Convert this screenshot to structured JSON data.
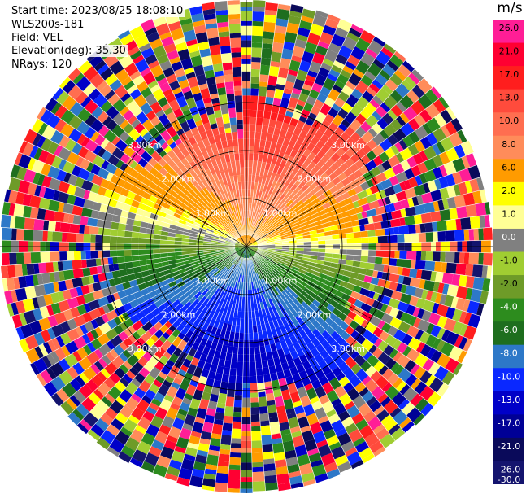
{
  "header": {
    "start_time": "Start time: 2023/08/25 18:08:10",
    "instrument": "WLS200s-181",
    "field": "Field: VEL",
    "elevation": "Elevation(deg): 35.30",
    "nrays": "NRays: 120"
  },
  "chart_data": {
    "type": "heatmap",
    "projection": "polar-ppi",
    "field": "VEL",
    "unit": "m/s",
    "nrays": 120,
    "elevation_deg": 35.3,
    "range_rings_km": [
      1.0,
      2.0,
      3.0
    ],
    "ring_labels": [
      "1.00km",
      "2.00km",
      "3.00km"
    ],
    "colorbar": {
      "ticks": [
        26.0,
        21.0,
        17.0,
        13.0,
        10.0,
        8.0,
        6.0,
        2.0,
        1.0,
        0.0,
        -1.0,
        -2.0,
        -4.0,
        -6.0,
        -8.0,
        -10.0,
        -13.0,
        -17.0,
        -21.0,
        -26.0,
        -30.0
      ],
      "tick_labels": [
        "26.0",
        "21.0",
        "17.0",
        "13.0",
        "10.0",
        "8.0",
        "6.0",
        "2.0",
        "1.0",
        "0.0",
        "-1.0",
        "-2.0",
        "-4.0",
        "-6.0",
        "-8.0",
        "-10.0",
        "-13.0",
        "-17.0",
        "-21.0",
        "-26.0",
        "-30.0"
      ],
      "colors": [
        "#ff1e96",
        "#ff0032",
        "#ff1e1e",
        "#ff4b3c",
        "#ff6e50",
        "#ff8c5a",
        "#ff9b00",
        "#ffff00",
        "#ffff96",
        "#808080",
        "#a0cd32",
        "#6e9b28",
        "#2d8c1e",
        "#1e6e1e",
        "#2d78c8",
        "#0a28ff",
        "#0000c8",
        "#000096",
        "#0a0a5a",
        "#14146e"
      ]
    }
  }
}
